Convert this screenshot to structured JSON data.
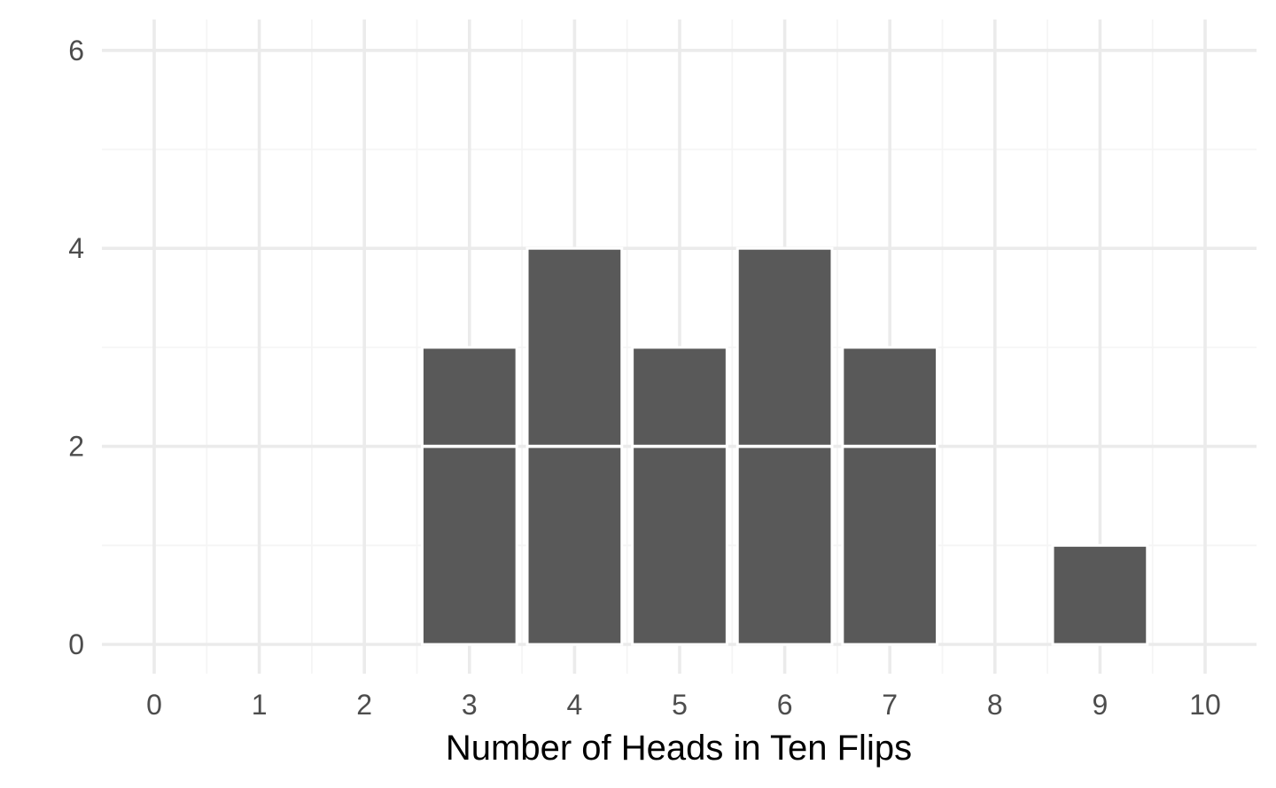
{
  "chart_data": {
    "type": "bar",
    "title": "",
    "xlabel": "Number of Heads in Ten Flips",
    "ylabel": "",
    "x_ticks": [
      "0",
      "1",
      "2",
      "3",
      "4",
      "5",
      "6",
      "7",
      "8",
      "9",
      "10"
    ],
    "y_ticks": [
      "0",
      "2",
      "4",
      "6"
    ],
    "xlim": [
      -1,
      11
    ],
    "ylim": [
      0,
      6
    ],
    "categories": [
      3,
      4,
      5,
      6,
      7,
      9
    ],
    "values": [
      3,
      4,
      3,
      4,
      3,
      1
    ],
    "grid": true,
    "legend": "none",
    "colors": {
      "bar": "#595959",
      "bar_outline": "#ffffff",
      "grid_major": "#ebebeb",
      "grid_minor": "#f5f5f5",
      "background": "#ffffff"
    }
  }
}
